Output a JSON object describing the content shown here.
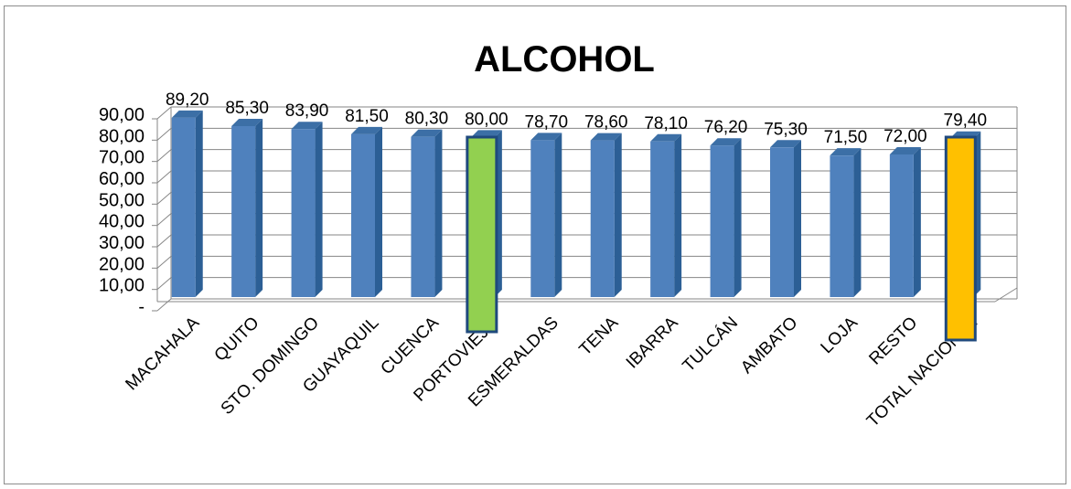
{
  "chart_data": {
    "type": "bar",
    "title": "ALCOHOL",
    "categories": [
      "MACAHALA",
      "QUITO",
      "STO. DOMINGO",
      "GUAYAQUIL",
      "CUENCA",
      "PORTOVIEJO",
      "ESMERALDAS",
      "TENA",
      "IBARRA",
      "TULCÁN",
      "AMBATO",
      "LOJA",
      "RESTO",
      "TOTAL NACIONAL"
    ],
    "values": [
      89.2,
      85.3,
      83.9,
      81.5,
      80.3,
      80.0,
      78.7,
      78.6,
      78.1,
      76.2,
      75.3,
      71.5,
      72.0,
      79.4
    ],
    "data_labels": [
      "89,20",
      "85,30",
      "83,90",
      "81,50",
      "80,30",
      "80,00",
      "78,70",
      "78,60",
      "78,10",
      "76,20",
      "75,30",
      "71,50",
      "72,00",
      "79,40"
    ],
    "y_ticks": [
      "-",
      "10,00",
      "20,00",
      "30,00",
      "40,00",
      "50,00",
      "60,00",
      "70,00",
      "80,00",
      "90,00"
    ],
    "ylim": [
      0,
      90
    ],
    "grid": true,
    "legend": "none",
    "colors": {
      "bar": "#4f81bd",
      "highlight_portoviejo": "#92d050",
      "highlight_total": "#ffc000",
      "highlight_border": "#1f497d"
    },
    "highlighted_categories": [
      "PORTOVIEJO",
      "TOTAL NACIONAL"
    ]
  }
}
